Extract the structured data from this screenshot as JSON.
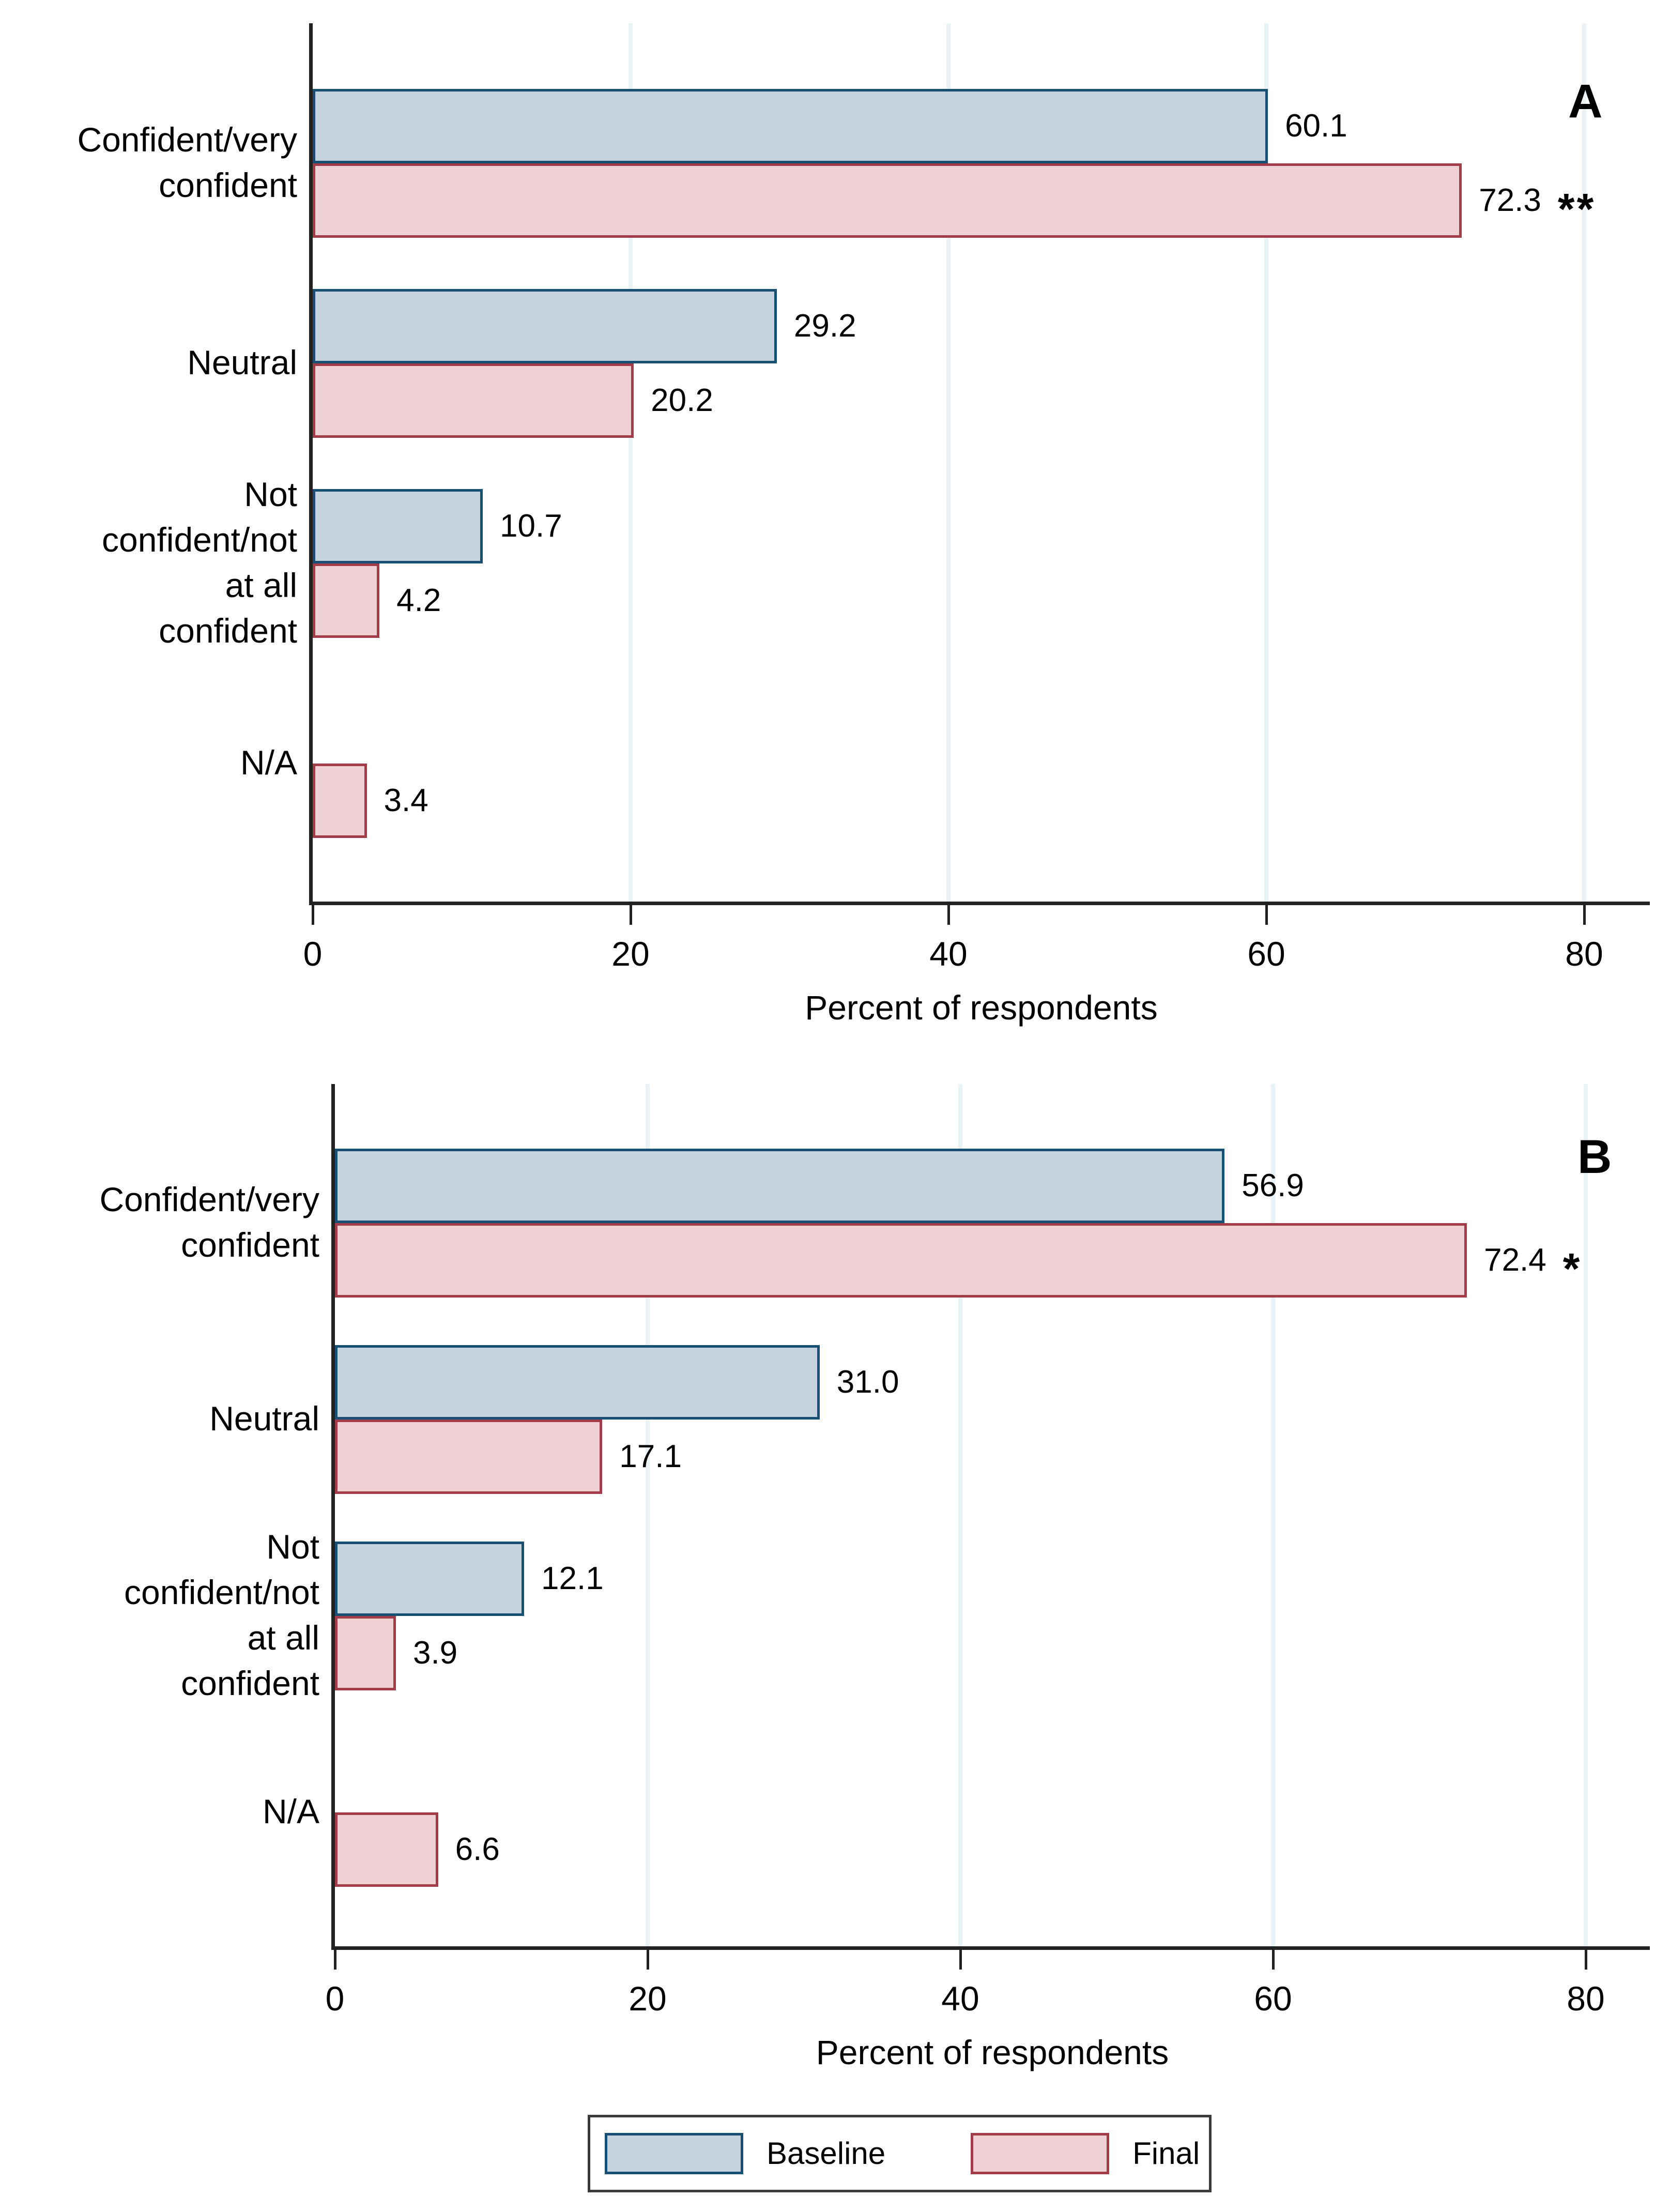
{
  "figure": {
    "background": "#ffffff"
  },
  "axis": {
    "xlabel": "Percent of respondents",
    "xticks": [
      0,
      20,
      40,
      60,
      80
    ],
    "xlim": [
      0,
      84
    ],
    "grid": true,
    "legend_position": "bottom-center"
  },
  "colors": {
    "baseline_fill": "#c5d3df",
    "baseline_border": "#175073",
    "final_fill": "#eed0d5",
    "final_border": "#a33c49",
    "gridline": "#e9f2f5",
    "axis_line": "#222222",
    "text": "#000000",
    "legend_border": "#3a3a3a"
  },
  "legend": {
    "items": [
      {
        "label": "Baseline",
        "fill": "#c5d3df",
        "border": "#175073"
      },
      {
        "label": "Final",
        "fill": "#eed0d5",
        "border": "#a33c49"
      }
    ]
  },
  "chart_data": [
    {
      "type": "bar",
      "orientation": "horizontal",
      "panel_label": "A",
      "xlabel": "Percent of respondents",
      "xticks": [
        0,
        20,
        40,
        60,
        80
      ],
      "xlim": [
        0,
        84
      ],
      "categories": [
        "Confident/very confident",
        "Neutral",
        "Not confident/not at all confident",
        "N/A"
      ],
      "series": [
        {
          "name": "Baseline",
          "values": [
            60.1,
            29.2,
            10.7,
            null
          ]
        },
        {
          "name": "Final",
          "values": [
            72.3,
            20.2,
            4.2,
            3.4
          ]
        }
      ],
      "significance": {
        "series": "Final",
        "marks": [
          "**",
          null,
          null,
          null
        ]
      },
      "rows": [
        {
          "category_lines": [
            "Confident/very",
            "confident"
          ],
          "baseline": {
            "value": 60.1,
            "label": "60.1"
          },
          "final": {
            "value": 72.3,
            "label": "72.3",
            "sig": "**"
          }
        },
        {
          "category_lines": [
            "Neutral"
          ],
          "baseline": {
            "value": 29.2,
            "label": "29.2"
          },
          "final": {
            "value": 20.2,
            "label": "20.2",
            "sig": null
          }
        },
        {
          "category_lines": [
            "Not",
            "confident/not",
            "at all",
            "confident"
          ],
          "baseline": {
            "value": 10.7,
            "label": "10.7"
          },
          "final": {
            "value": 4.2,
            "label": "4.2",
            "sig": null
          }
        },
        {
          "category_lines": [
            "N/A"
          ],
          "baseline": null,
          "final": {
            "value": 3.4,
            "label": "3.4",
            "sig": null
          }
        }
      ]
    },
    {
      "type": "bar",
      "orientation": "horizontal",
      "panel_label": "B",
      "xlabel": "Percent of respondents",
      "xticks": [
        0,
        20,
        40,
        60,
        80
      ],
      "xlim": [
        0,
        84
      ],
      "categories": [
        "Confident/very confident",
        "Neutral",
        "Not confident/not at all confident",
        "N/A"
      ],
      "series": [
        {
          "name": "Baseline",
          "values": [
            56.9,
            31.0,
            12.1,
            null
          ]
        },
        {
          "name": "Final",
          "values": [
            72.4,
            17.1,
            3.9,
            6.6
          ]
        }
      ],
      "significance": {
        "series": "Final",
        "marks": [
          "*",
          null,
          null,
          null
        ]
      },
      "rows": [
        {
          "category_lines": [
            "Confident/very",
            "confident"
          ],
          "baseline": {
            "value": 56.9,
            "label": "56.9"
          },
          "final": {
            "value": 72.4,
            "label": "72.4",
            "sig": "*"
          }
        },
        {
          "category_lines": [
            "Neutral"
          ],
          "baseline": {
            "value": 31.0,
            "label": "31.0"
          },
          "final": {
            "value": 17.1,
            "label": "17.1",
            "sig": null
          }
        },
        {
          "category_lines": [
            "Not",
            "confident/not",
            "at all",
            "confident"
          ],
          "baseline": {
            "value": 12.1,
            "label": "12.1"
          },
          "final": {
            "value": 3.9,
            "label": "3.9",
            "sig": null
          }
        },
        {
          "category_lines": [
            "N/A"
          ],
          "baseline": null,
          "final": {
            "value": 6.6,
            "label": "6.6",
            "sig": null
          }
        }
      ]
    }
  ]
}
